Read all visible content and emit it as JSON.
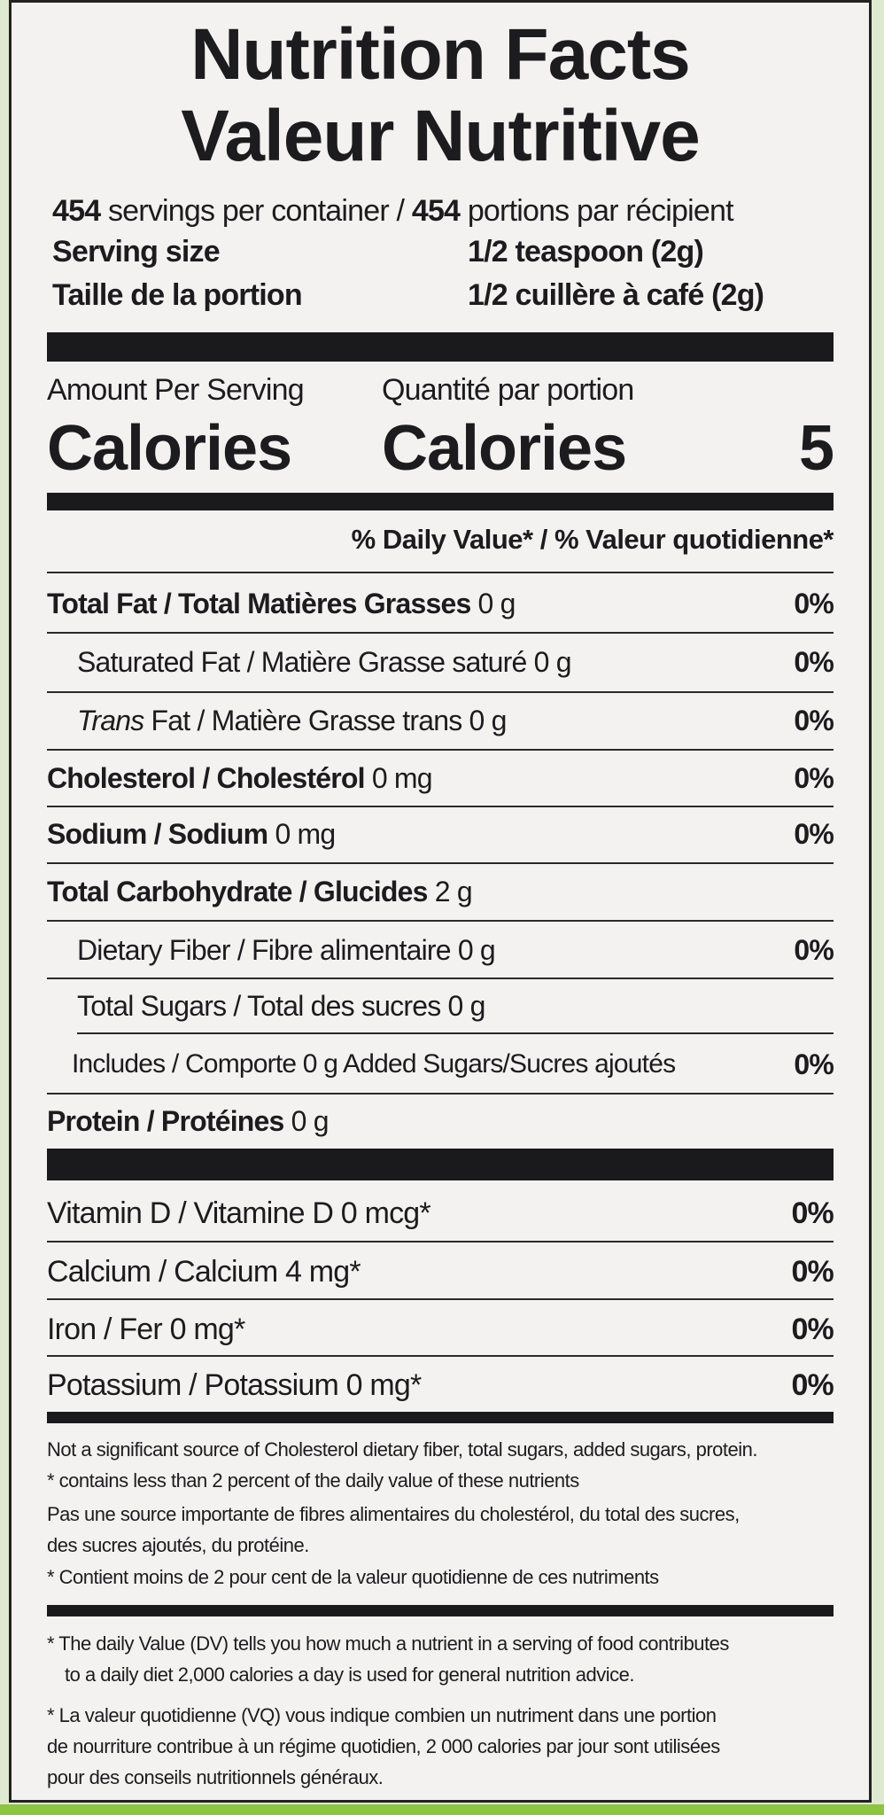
{
  "title_en": "Nutrition Facts",
  "title_fr": "Valeur Nutritive",
  "servings": {
    "count": "454",
    "en": "servings per container /",
    "count_fr": "454",
    "fr": "portions par récipient"
  },
  "serving_size": {
    "label_en": "Serving size",
    "value_en": "1/2 teaspoon (2g)",
    "label_fr": "Taille de la portion",
    "value_fr": "1/2 cuillère à café (2g)"
  },
  "calories": {
    "amount_en": "Amount Per Serving",
    "amount_fr": "Quantité par portion",
    "label_en": "Calories",
    "label_fr": "Calories",
    "value": "5"
  },
  "dv_header": "% Daily Value* / % Valeur quotidienne*",
  "nutrients": [
    {
      "name": "Total Fat / Total Matières Grasses",
      "amount": "0 g",
      "pct": "0%"
    },
    {
      "name": "Saturated Fat / Matière Grasse saturé",
      "amount": "0 g",
      "pct": "0%"
    },
    {
      "name_italic": "Trans",
      "name": "Fat / Matière Grasse trans",
      "amount": "0 g",
      "pct": "0%"
    },
    {
      "name": "Cholesterol / Cholestérol",
      "amount": "0 mg",
      "pct": "0%"
    },
    {
      "name": "Sodium / Sodium",
      "amount": "0 mg",
      "pct": "0%"
    },
    {
      "name": "Total Carbohydrate / Glucides",
      "amount": "2 g",
      "pct": ""
    },
    {
      "name": "Dietary Fiber / Fibre alimentaire",
      "amount": "0 g",
      "pct": "0%"
    },
    {
      "name": "Total Sugars / Total des sucres",
      "amount": "0 g",
      "pct": ""
    },
    {
      "name": "Includes / Comporte 0 g Added Sugars/Sucres ajoutés",
      "amount": "",
      "pct": "0%"
    },
    {
      "name": "Protein / Protéines",
      "amount": "0 g",
      "pct": ""
    }
  ],
  "vitamins": [
    {
      "name": "Vitamin D / Vitamine D 0 mcg*",
      "pct": "0%"
    },
    {
      "name": "Calcium / Calcium 4 mg*",
      "pct": "0%"
    },
    {
      "name": "Iron / Fer 0 mg*",
      "pct": "0%"
    },
    {
      "name": "Potassium / Potassium 0 mg*",
      "pct": "0%"
    }
  ],
  "footnotes": [
    "Not a significant source of Cholesterol dietary fiber, total sugars, added sugars, protein.",
    "* contains less than 2 percent of the daily value of these nutrients",
    "Pas une source importante de fibres alimentaires du cholestérol, du total des sucres,",
    "des sucres ajoutés, du protéine.",
    "* Contient moins de 2 pour cent de la valeur quotidienne de ces nutriments"
  ],
  "dv_notes": [
    "* The daily Value (DV) tells you how much a nutrient in a serving of food contributes",
    "to a daily diet 2,000 calories a day is used for general nutrition advice.",
    "* La valeur quotidienne (VQ) vous indique combien un nutriment dans une portion",
    "de nourriture contribue à un régime quotidien, 2 000 calories par jour sont utilisées",
    "pour des conseils nutritionnels généraux."
  ]
}
